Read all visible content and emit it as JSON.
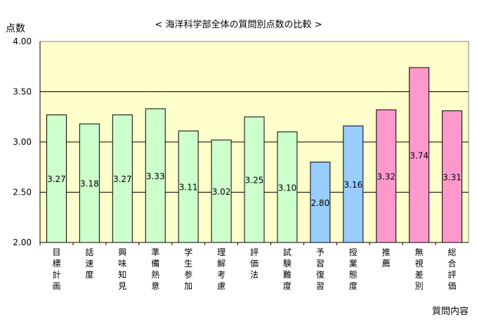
{
  "chart_data": {
    "type": "bar",
    "title": "< 海洋科学部全体の質問別点数の比較 >",
    "ylabel": "点数",
    "xlabel": "質問内容",
    "ylim": [
      2.0,
      4.0
    ],
    "yticks": [
      "2.00",
      "2.50",
      "3.00",
      "3.50",
      "4.00"
    ],
    "ytick_values": [
      2.0,
      2.5,
      3.0,
      3.5,
      4.0
    ],
    "grid": true,
    "categories": [
      "目標計画",
      "話速度",
      "興味知見",
      "準備熱意",
      "学生参加",
      "理解考慮",
      "評価法",
      "試験難度",
      "予習復習",
      "授業態度",
      "推薦",
      "無視差別",
      "総合評価"
    ],
    "values": [
      3.27,
      3.18,
      3.27,
      3.33,
      3.11,
      3.02,
      3.25,
      3.1,
      2.8,
      3.16,
      3.32,
      3.74,
      3.31
    ],
    "value_labels": [
      "3.27",
      "3.18",
      "3.27",
      "3.33",
      "3.11",
      "3.02",
      "3.25",
      "3.10",
      "2.80",
      "3.16",
      "3.32",
      "3.74",
      "3.31"
    ],
    "bar_colors": [
      "#ccffcc",
      "#ccffcc",
      "#ccffcc",
      "#ccffcc",
      "#ccffcc",
      "#ccffcc",
      "#ccffcc",
      "#ccffcc",
      "#99ccff",
      "#99ccff",
      "#ff99cc",
      "#ff99cc",
      "#ff99cc"
    ],
    "plot_background": "#ffffcc"
  }
}
